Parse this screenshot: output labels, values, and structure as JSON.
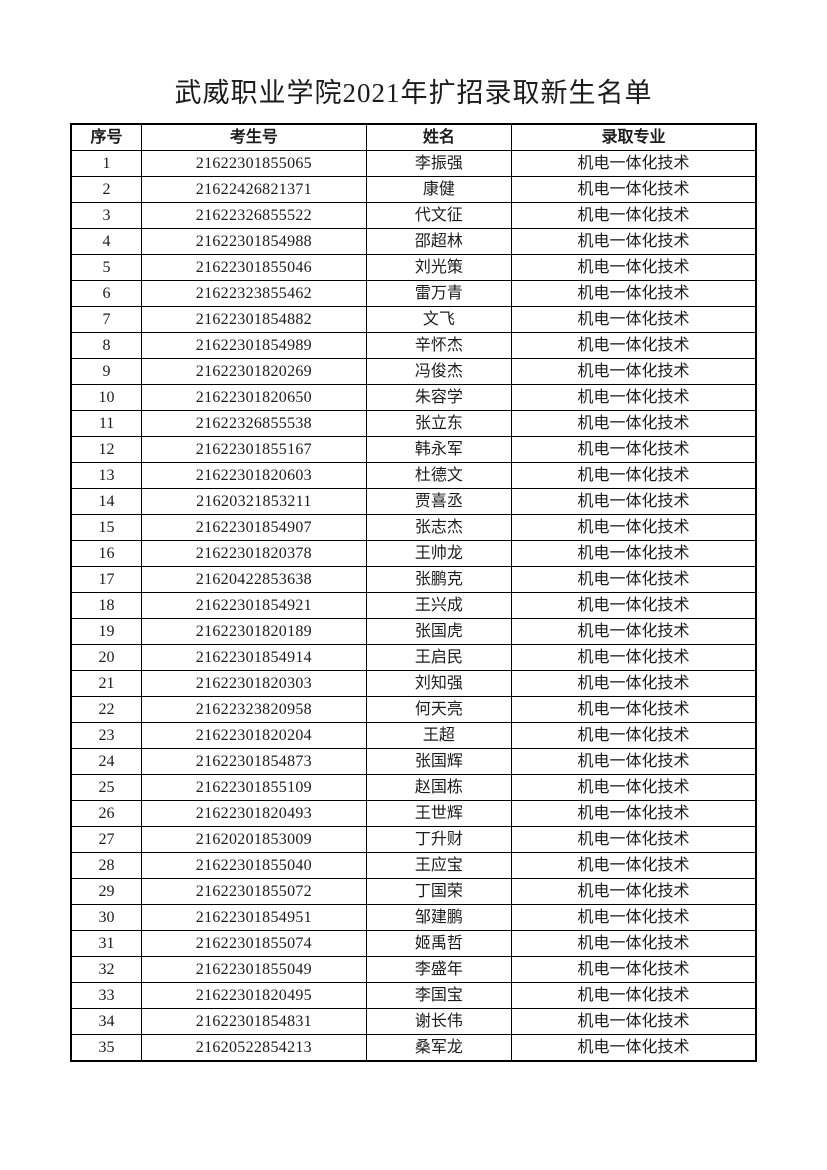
{
  "title": "武威职业学院2021年扩招录取新生名单",
  "colors": {
    "background": "#ffffff",
    "text": "#1c1c1c",
    "table_border": "#000000"
  },
  "table": {
    "headers": [
      "序号",
      "考生号",
      "姓名",
      "录取专业"
    ],
    "rows": [
      {
        "no": "1",
        "candidate_id": "21622301855065",
        "name": "李振强",
        "major": "机电一体化技术"
      },
      {
        "no": "2",
        "candidate_id": "21622426821371",
        "name": "康健",
        "major": "机电一体化技术"
      },
      {
        "no": "3",
        "candidate_id": "21622326855522",
        "name": "代文征",
        "major": "机电一体化技术"
      },
      {
        "no": "4",
        "candidate_id": "21622301854988",
        "name": "邵超林",
        "major": "机电一体化技术"
      },
      {
        "no": "5",
        "candidate_id": "21622301855046",
        "name": "刘光策",
        "major": "机电一体化技术"
      },
      {
        "no": "6",
        "candidate_id": "21622323855462",
        "name": "雷万青",
        "major": "机电一体化技术"
      },
      {
        "no": "7",
        "candidate_id": "21622301854882",
        "name": "文飞",
        "major": "机电一体化技术"
      },
      {
        "no": "8",
        "candidate_id": "21622301854989",
        "name": "辛怀杰",
        "major": "机电一体化技术"
      },
      {
        "no": "9",
        "candidate_id": "21622301820269",
        "name": "冯俊杰",
        "major": "机电一体化技术"
      },
      {
        "no": "10",
        "candidate_id": "21622301820650",
        "name": "朱容学",
        "major": "机电一体化技术"
      },
      {
        "no": "11",
        "candidate_id": "21622326855538",
        "name": "张立东",
        "major": "机电一体化技术"
      },
      {
        "no": "12",
        "candidate_id": "21622301855167",
        "name": "韩永军",
        "major": "机电一体化技术"
      },
      {
        "no": "13",
        "candidate_id": "21622301820603",
        "name": "杜德文",
        "major": "机电一体化技术"
      },
      {
        "no": "14",
        "candidate_id": "21620321853211",
        "name": "贾喜丞",
        "major": "机电一体化技术"
      },
      {
        "no": "15",
        "candidate_id": "21622301854907",
        "name": "张志杰",
        "major": "机电一体化技术"
      },
      {
        "no": "16",
        "candidate_id": "21622301820378",
        "name": "王帅龙",
        "major": "机电一体化技术"
      },
      {
        "no": "17",
        "candidate_id": "21620422853638",
        "name": "张鹏克",
        "major": "机电一体化技术"
      },
      {
        "no": "18",
        "candidate_id": "21622301854921",
        "name": "王兴成",
        "major": "机电一体化技术"
      },
      {
        "no": "19",
        "candidate_id": "21622301820189",
        "name": "张国虎",
        "major": "机电一体化技术"
      },
      {
        "no": "20",
        "candidate_id": "21622301854914",
        "name": "王启民",
        "major": "机电一体化技术"
      },
      {
        "no": "21",
        "candidate_id": "21622301820303",
        "name": "刘知强",
        "major": "机电一体化技术"
      },
      {
        "no": "22",
        "candidate_id": "21622323820958",
        "name": "何天亮",
        "major": "机电一体化技术"
      },
      {
        "no": "23",
        "candidate_id": "21622301820204",
        "name": "王超",
        "major": "机电一体化技术"
      },
      {
        "no": "24",
        "candidate_id": "21622301854873",
        "name": "张国辉",
        "major": "机电一体化技术"
      },
      {
        "no": "25",
        "candidate_id": "21622301855109",
        "name": "赵国栋",
        "major": "机电一体化技术"
      },
      {
        "no": "26",
        "candidate_id": "21622301820493",
        "name": "王世辉",
        "major": "机电一体化技术"
      },
      {
        "no": "27",
        "candidate_id": "21620201853009",
        "name": "丁升财",
        "major": "机电一体化技术"
      },
      {
        "no": "28",
        "candidate_id": "21622301855040",
        "name": "王应宝",
        "major": "机电一体化技术"
      },
      {
        "no": "29",
        "candidate_id": "21622301855072",
        "name": "丁国荣",
        "major": "机电一体化技术"
      },
      {
        "no": "30",
        "candidate_id": "21622301854951",
        "name": "邹建鹏",
        "major": "机电一体化技术"
      },
      {
        "no": "31",
        "candidate_id": "21622301855074",
        "name": "姬禹哲",
        "major": "机电一体化技术"
      },
      {
        "no": "32",
        "candidate_id": "21622301855049",
        "name": "李盛年",
        "major": "机电一体化技术"
      },
      {
        "no": "33",
        "candidate_id": "21622301820495",
        "name": "李国宝",
        "major": "机电一体化技术"
      },
      {
        "no": "34",
        "candidate_id": "21622301854831",
        "name": "谢长伟",
        "major": "机电一体化技术"
      },
      {
        "no": "35",
        "candidate_id": "21620522854213",
        "name": "桑军龙",
        "major": "机电一体化技术"
      }
    ]
  }
}
